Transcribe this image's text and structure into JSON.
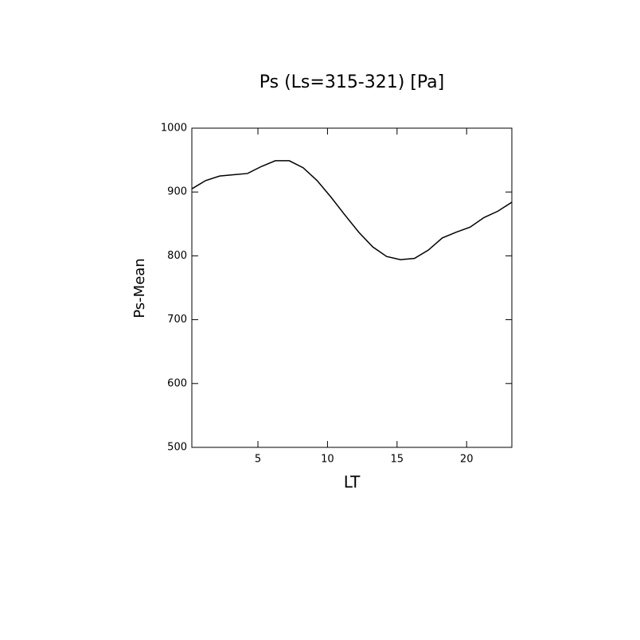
{
  "chart_data": {
    "type": "line",
    "title": "Ps (Ls=315-321) [Pa]",
    "x_label": "LT",
    "y_label": "Ps-Mean",
    "x": [
      0.25,
      1.25,
      2.25,
      3.25,
      4.25,
      5.25,
      6.25,
      7.25,
      8.25,
      9.25,
      10.25,
      11.25,
      12.25,
      13.25,
      14.25,
      15.25,
      16.25,
      17.25,
      18.25,
      19.25,
      20.25,
      21.25,
      22.25,
      23.25
    ],
    "series": [
      {
        "name": "Ps-Mean",
        "color": "#000000",
        "values": [
          905,
          918,
          925,
          927,
          929,
          940,
          949,
          949,
          938,
          918,
          892,
          864,
          837,
          814,
          799,
          794,
          796,
          809,
          828,
          837,
          845,
          860,
          870,
          884
        ]
      }
    ],
    "xlim": [
      0.25,
      23.25
    ],
    "xticks": [
      5,
      10,
      15,
      20
    ],
    "ylim": [
      500,
      1000
    ],
    "yticks": [
      500,
      600,
      700,
      800,
      900,
      1000
    ],
    "grid": false
  }
}
